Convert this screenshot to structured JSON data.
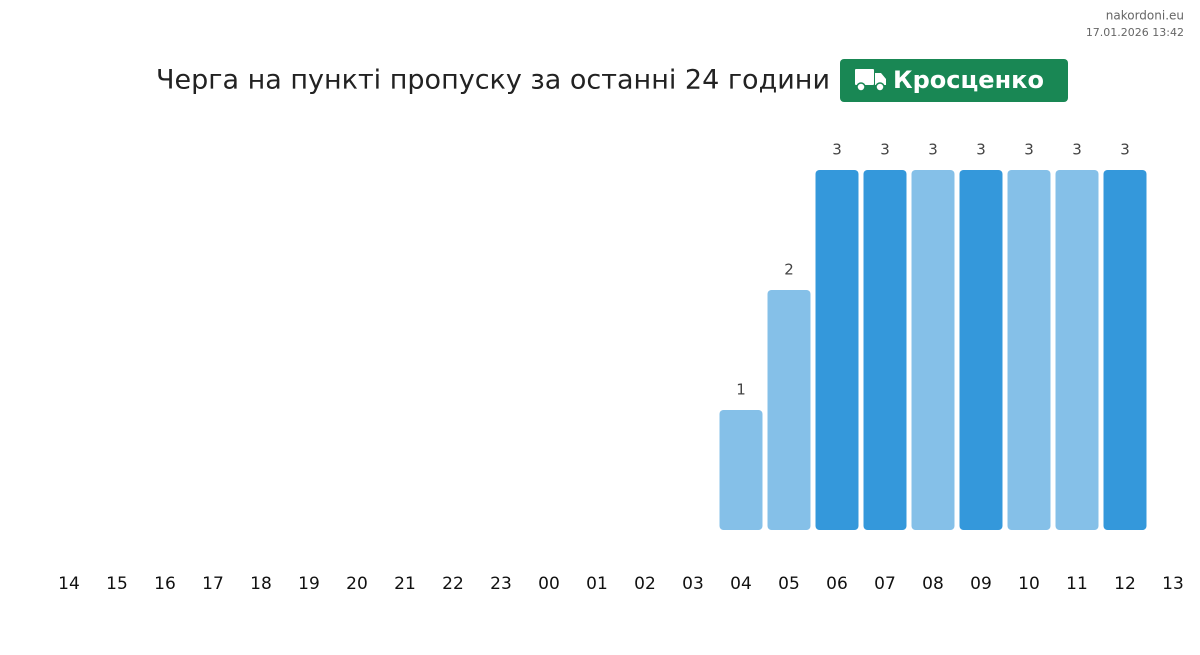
{
  "site": "nakordoni.eu",
  "timestamp": "17.01.2026 13:42",
  "chart_data": {
    "type": "bar",
    "title": "Черга на пункті пропуску за останні 24 години",
    "badge": "Кросценко",
    "categories": [
      "14",
      "15",
      "16",
      "17",
      "18",
      "19",
      "20",
      "21",
      "22",
      "23",
      "00",
      "01",
      "02",
      "03",
      "04",
      "05",
      "06",
      "07",
      "08",
      "09",
      "10",
      "11",
      "12",
      "13"
    ],
    "values": [
      null,
      null,
      null,
      null,
      null,
      null,
      null,
      null,
      null,
      null,
      null,
      null,
      null,
      null,
      1,
      2,
      3,
      3,
      3,
      3,
      3,
      3,
      3,
      null
    ],
    "colors": [
      null,
      null,
      null,
      null,
      null,
      null,
      null,
      null,
      null,
      null,
      null,
      null,
      null,
      null,
      "#85c0e8",
      "#85c0e8",
      "#3498db",
      "#3498db",
      "#85c0e8",
      "#3498db",
      "#85c0e8",
      "#85c0e8",
      "#3498db",
      null
    ]
  }
}
